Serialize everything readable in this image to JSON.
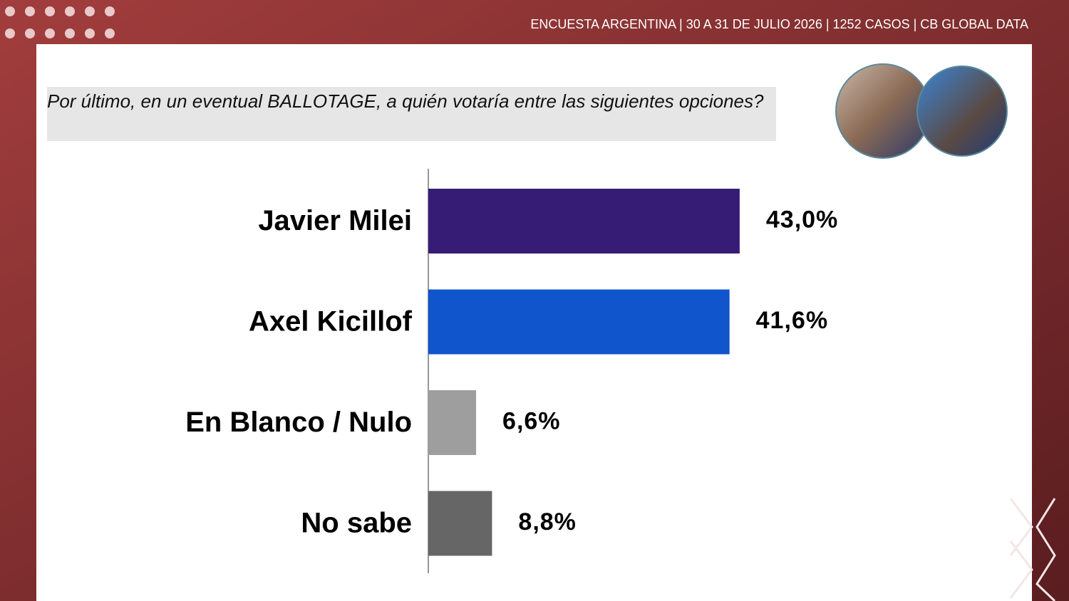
{
  "header": "ENCUESTA ARGENTINA | 30 A 31 DE JULIO 2026 | 1252 CASOS | CB GLOBAL DATA",
  "chart_data": {
    "type": "bar",
    "orientation": "horizontal",
    "title": "Por último, en un eventual BALLOTAGE, a quién votaría entre las siguientes opciones?",
    "categories": [
      "Javier Milei",
      "Axel Kicillof",
      "En Blanco / Nulo",
      "No sabe"
    ],
    "values": [
      43.0,
      41.6,
      6.6,
      8.8
    ],
    "value_labels": [
      "43,0%",
      "41,6%",
      "6,6%",
      "8,8%"
    ],
    "colors": [
      "#361c75",
      "#1155cc",
      "#9e9e9e",
      "#666666"
    ]
  }
}
